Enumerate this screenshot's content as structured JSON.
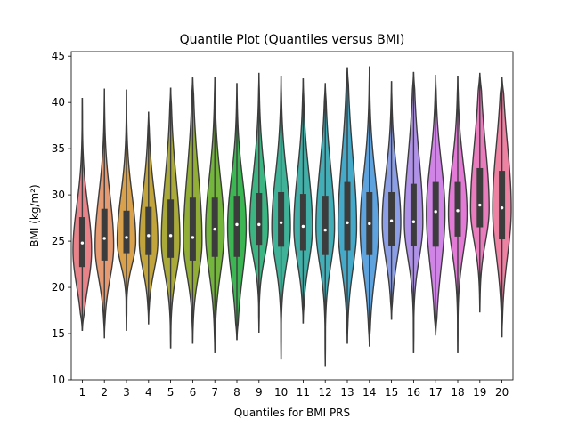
{
  "chart_data": {
    "type": "violin",
    "title": "Quantile Plot (Quantiles versus BMI)",
    "xlabel": "Quantiles for BMI PRS",
    "ylabel": "BMI (kg/m²)",
    "ylim": [
      10,
      45.5
    ],
    "yticks": [
      10,
      15,
      20,
      25,
      30,
      35,
      40,
      45
    ],
    "categories": [
      "1",
      "2",
      "3",
      "4",
      "5",
      "6",
      "7",
      "8",
      "9",
      "10",
      "11",
      "12",
      "13",
      "14",
      "15",
      "16",
      "17",
      "18",
      "19",
      "20"
    ],
    "colors": [
      "#e8838a",
      "#e59a72",
      "#d9a14b",
      "#c2a43c",
      "#a9aa3a",
      "#92ae36",
      "#74b53d",
      "#3bb652",
      "#3db583",
      "#3fb297",
      "#40b0a8",
      "#42aeb7",
      "#45aac9",
      "#5fa3de",
      "#8c9fe6",
      "#b093e9",
      "#d085e6",
      "#e27ad6",
      "#e97cbc",
      "#ee82a3"
    ],
    "series": [
      {
        "name": "1",
        "min": 15.3,
        "q1": 22.2,
        "median": 24.8,
        "q3": 27.6,
        "max": 40.5,
        "peak": 24.0
      },
      {
        "name": "2",
        "min": 14.5,
        "q1": 22.9,
        "median": 25.3,
        "q3": 28.5,
        "max": 41.5,
        "peak": 24.5
      },
      {
        "name": "3",
        "min": 15.3,
        "q1": 23.7,
        "median": 25.4,
        "q3": 28.3,
        "max": 41.4,
        "peak": 25.0
      },
      {
        "name": "4",
        "min": 16.0,
        "q1": 23.5,
        "median": 25.6,
        "q3": 28.7,
        "max": 39.0,
        "peak": 25.0
      },
      {
        "name": "5",
        "min": 13.4,
        "q1": 23.2,
        "median": 25.6,
        "q3": 29.5,
        "max": 41.6,
        "peak": 25.0
      },
      {
        "name": "6",
        "min": 13.9,
        "q1": 22.9,
        "median": 25.4,
        "q3": 29.7,
        "max": 42.7,
        "peak": 25.0
      },
      {
        "name": "7",
        "min": 12.9,
        "q1": 23.3,
        "median": 26.3,
        "q3": 29.7,
        "max": 42.8,
        "peak": 26.0
      },
      {
        "name": "8",
        "min": 14.3,
        "q1": 23.3,
        "median": 26.8,
        "q3": 29.9,
        "max": 42.1,
        "peak": 26.5
      },
      {
        "name": "9",
        "min": 15.1,
        "q1": 24.6,
        "median": 26.8,
        "q3": 30.2,
        "max": 43.2,
        "peak": 26.5
      },
      {
        "name": "10",
        "min": 12.2,
        "q1": 24.4,
        "median": 27.0,
        "q3": 30.3,
        "max": 42.9,
        "peak": 26.5
      },
      {
        "name": "11",
        "min": 16.1,
        "q1": 24.0,
        "median": 26.6,
        "q3": 30.1,
        "max": 42.6,
        "peak": 26.5
      },
      {
        "name": "12",
        "min": 11.5,
        "q1": 23.5,
        "median": 26.2,
        "q3": 29.9,
        "max": 42.1,
        "peak": 26.5
      },
      {
        "name": "13",
        "min": 13.9,
        "q1": 24.0,
        "median": 27.0,
        "q3": 31.4,
        "max": 43.8,
        "peak": 26.5
      },
      {
        "name": "14",
        "min": 13.6,
        "q1": 23.5,
        "median": 26.9,
        "q3": 30.3,
        "max": 43.9,
        "peak": 26.5
      },
      {
        "name": "15",
        "min": 16.5,
        "q1": 24.5,
        "median": 27.2,
        "q3": 30.3,
        "max": 42.3,
        "peak": 27.0
      },
      {
        "name": "16",
        "min": 12.9,
        "q1": 24.5,
        "median": 27.1,
        "q3": 31.2,
        "max": 43.3,
        "peak": 27.0
      },
      {
        "name": "17",
        "min": 14.8,
        "q1": 24.4,
        "median": 28.2,
        "q3": 31.4,
        "max": 43.0,
        "peak": 28.0
      },
      {
        "name": "18",
        "min": 12.9,
        "q1": 25.5,
        "median": 28.3,
        "q3": 31.4,
        "max": 42.9,
        "peak": 28.0
      },
      {
        "name": "19",
        "min": 17.3,
        "q1": 26.5,
        "median": 28.9,
        "q3": 32.9,
        "max": 43.2,
        "peak": 28.5
      },
      {
        "name": "20",
        "min": 14.6,
        "q1": 25.2,
        "median": 28.6,
        "q3": 32.6,
        "max": 42.8,
        "peak": 28.5
      }
    ]
  }
}
